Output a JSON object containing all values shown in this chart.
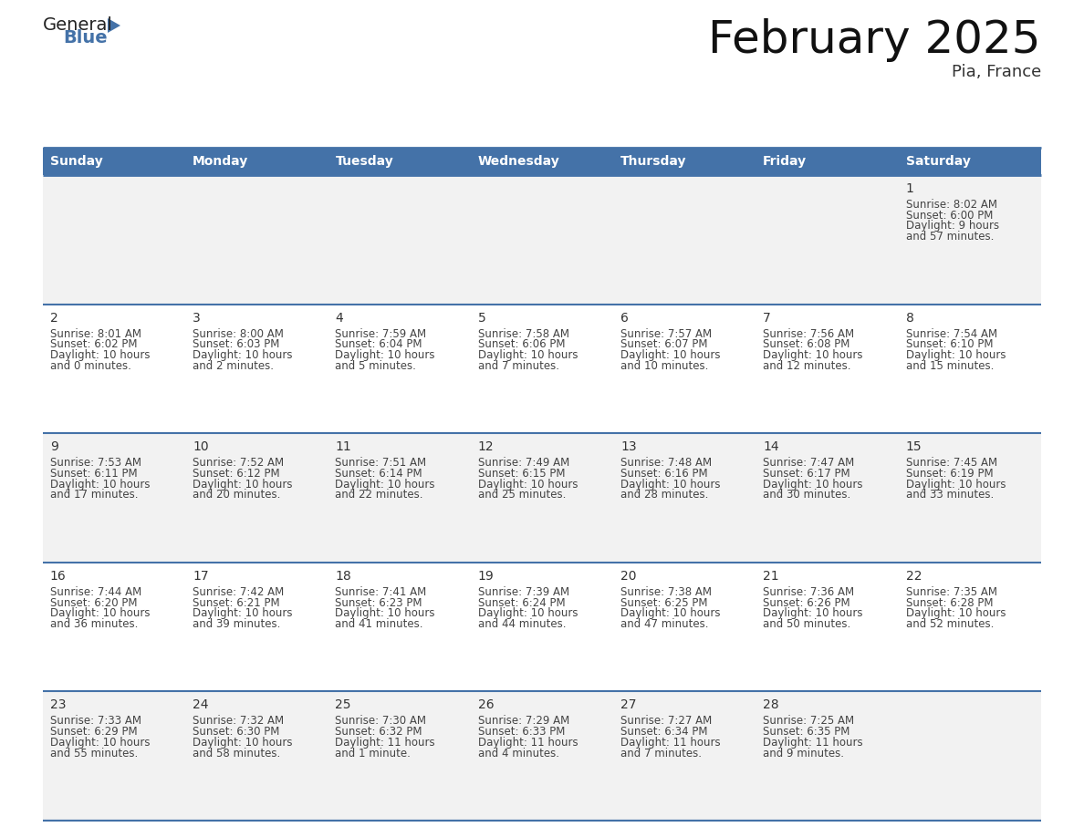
{
  "title": "February 2025",
  "subtitle": "Pia, France",
  "days_of_week": [
    "Sunday",
    "Monday",
    "Tuesday",
    "Wednesday",
    "Thursday",
    "Friday",
    "Saturday"
  ],
  "header_bg": "#4472A8",
  "header_text": "#FFFFFF",
  "row_bg_odd": "#F2F2F2",
  "row_bg_even": "#FFFFFF",
  "border_color": "#4472A8",
  "day_num_color": "#333333",
  "text_color": "#444444",
  "calendar_data": [
    [
      {
        "day": "",
        "sunrise": "",
        "sunset": "",
        "daylight_line1": "",
        "daylight_line2": ""
      },
      {
        "day": "",
        "sunrise": "",
        "sunset": "",
        "daylight_line1": "",
        "daylight_line2": ""
      },
      {
        "day": "",
        "sunrise": "",
        "sunset": "",
        "daylight_line1": "",
        "daylight_line2": ""
      },
      {
        "day": "",
        "sunrise": "",
        "sunset": "",
        "daylight_line1": "",
        "daylight_line2": ""
      },
      {
        "day": "",
        "sunrise": "",
        "sunset": "",
        "daylight_line1": "",
        "daylight_line2": ""
      },
      {
        "day": "",
        "sunrise": "",
        "sunset": "",
        "daylight_line1": "",
        "daylight_line2": ""
      },
      {
        "day": "1",
        "sunrise": "Sunrise: 8:02 AM",
        "sunset": "Sunset: 6:00 PM",
        "daylight_line1": "Daylight: 9 hours",
        "daylight_line2": "and 57 minutes."
      }
    ],
    [
      {
        "day": "2",
        "sunrise": "Sunrise: 8:01 AM",
        "sunset": "Sunset: 6:02 PM",
        "daylight_line1": "Daylight: 10 hours",
        "daylight_line2": "and 0 minutes."
      },
      {
        "day": "3",
        "sunrise": "Sunrise: 8:00 AM",
        "sunset": "Sunset: 6:03 PM",
        "daylight_line1": "Daylight: 10 hours",
        "daylight_line2": "and 2 minutes."
      },
      {
        "day": "4",
        "sunrise": "Sunrise: 7:59 AM",
        "sunset": "Sunset: 6:04 PM",
        "daylight_line1": "Daylight: 10 hours",
        "daylight_line2": "and 5 minutes."
      },
      {
        "day": "5",
        "sunrise": "Sunrise: 7:58 AM",
        "sunset": "Sunset: 6:06 PM",
        "daylight_line1": "Daylight: 10 hours",
        "daylight_line2": "and 7 minutes."
      },
      {
        "day": "6",
        "sunrise": "Sunrise: 7:57 AM",
        "sunset": "Sunset: 6:07 PM",
        "daylight_line1": "Daylight: 10 hours",
        "daylight_line2": "and 10 minutes."
      },
      {
        "day": "7",
        "sunrise": "Sunrise: 7:56 AM",
        "sunset": "Sunset: 6:08 PM",
        "daylight_line1": "Daylight: 10 hours",
        "daylight_line2": "and 12 minutes."
      },
      {
        "day": "8",
        "sunrise": "Sunrise: 7:54 AM",
        "sunset": "Sunset: 6:10 PM",
        "daylight_line1": "Daylight: 10 hours",
        "daylight_line2": "and 15 minutes."
      }
    ],
    [
      {
        "day": "9",
        "sunrise": "Sunrise: 7:53 AM",
        "sunset": "Sunset: 6:11 PM",
        "daylight_line1": "Daylight: 10 hours",
        "daylight_line2": "and 17 minutes."
      },
      {
        "day": "10",
        "sunrise": "Sunrise: 7:52 AM",
        "sunset": "Sunset: 6:12 PM",
        "daylight_line1": "Daylight: 10 hours",
        "daylight_line2": "and 20 minutes."
      },
      {
        "day": "11",
        "sunrise": "Sunrise: 7:51 AM",
        "sunset": "Sunset: 6:14 PM",
        "daylight_line1": "Daylight: 10 hours",
        "daylight_line2": "and 22 minutes."
      },
      {
        "day": "12",
        "sunrise": "Sunrise: 7:49 AM",
        "sunset": "Sunset: 6:15 PM",
        "daylight_line1": "Daylight: 10 hours",
        "daylight_line2": "and 25 minutes."
      },
      {
        "day": "13",
        "sunrise": "Sunrise: 7:48 AM",
        "sunset": "Sunset: 6:16 PM",
        "daylight_line1": "Daylight: 10 hours",
        "daylight_line2": "and 28 minutes."
      },
      {
        "day": "14",
        "sunrise": "Sunrise: 7:47 AM",
        "sunset": "Sunset: 6:17 PM",
        "daylight_line1": "Daylight: 10 hours",
        "daylight_line2": "and 30 minutes."
      },
      {
        "day": "15",
        "sunrise": "Sunrise: 7:45 AM",
        "sunset": "Sunset: 6:19 PM",
        "daylight_line1": "Daylight: 10 hours",
        "daylight_line2": "and 33 minutes."
      }
    ],
    [
      {
        "day": "16",
        "sunrise": "Sunrise: 7:44 AM",
        "sunset": "Sunset: 6:20 PM",
        "daylight_line1": "Daylight: 10 hours",
        "daylight_line2": "and 36 minutes."
      },
      {
        "day": "17",
        "sunrise": "Sunrise: 7:42 AM",
        "sunset": "Sunset: 6:21 PM",
        "daylight_line1": "Daylight: 10 hours",
        "daylight_line2": "and 39 minutes."
      },
      {
        "day": "18",
        "sunrise": "Sunrise: 7:41 AM",
        "sunset": "Sunset: 6:23 PM",
        "daylight_line1": "Daylight: 10 hours",
        "daylight_line2": "and 41 minutes."
      },
      {
        "day": "19",
        "sunrise": "Sunrise: 7:39 AM",
        "sunset": "Sunset: 6:24 PM",
        "daylight_line1": "Daylight: 10 hours",
        "daylight_line2": "and 44 minutes."
      },
      {
        "day": "20",
        "sunrise": "Sunrise: 7:38 AM",
        "sunset": "Sunset: 6:25 PM",
        "daylight_line1": "Daylight: 10 hours",
        "daylight_line2": "and 47 minutes."
      },
      {
        "day": "21",
        "sunrise": "Sunrise: 7:36 AM",
        "sunset": "Sunset: 6:26 PM",
        "daylight_line1": "Daylight: 10 hours",
        "daylight_line2": "and 50 minutes."
      },
      {
        "day": "22",
        "sunrise": "Sunrise: 7:35 AM",
        "sunset": "Sunset: 6:28 PM",
        "daylight_line1": "Daylight: 10 hours",
        "daylight_line2": "and 52 minutes."
      }
    ],
    [
      {
        "day": "23",
        "sunrise": "Sunrise: 7:33 AM",
        "sunset": "Sunset: 6:29 PM",
        "daylight_line1": "Daylight: 10 hours",
        "daylight_line2": "and 55 minutes."
      },
      {
        "day": "24",
        "sunrise": "Sunrise: 7:32 AM",
        "sunset": "Sunset: 6:30 PM",
        "daylight_line1": "Daylight: 10 hours",
        "daylight_line2": "and 58 minutes."
      },
      {
        "day": "25",
        "sunrise": "Sunrise: 7:30 AM",
        "sunset": "Sunset: 6:32 PM",
        "daylight_line1": "Daylight: 11 hours",
        "daylight_line2": "and 1 minute."
      },
      {
        "day": "26",
        "sunrise": "Sunrise: 7:29 AM",
        "sunset": "Sunset: 6:33 PM",
        "daylight_line1": "Daylight: 11 hours",
        "daylight_line2": "and 4 minutes."
      },
      {
        "day": "27",
        "sunrise": "Sunrise: 7:27 AM",
        "sunset": "Sunset: 6:34 PM",
        "daylight_line1": "Daylight: 11 hours",
        "daylight_line2": "and 7 minutes."
      },
      {
        "day": "28",
        "sunrise": "Sunrise: 7:25 AM",
        "sunset": "Sunset: 6:35 PM",
        "daylight_line1": "Daylight: 11 hours",
        "daylight_line2": "and 9 minutes."
      },
      {
        "day": "",
        "sunrise": "",
        "sunset": "",
        "daylight_line1": "",
        "daylight_line2": ""
      }
    ]
  ],
  "logo_text_general": "General",
  "logo_text_blue": "Blue",
  "logo_color_general": "#222222",
  "logo_color_blue": "#4472A8",
  "logo_triangle_color": "#4472A8",
  "title_fontsize": 36,
  "subtitle_fontsize": 13,
  "header_fontsize": 10,
  "day_num_fontsize": 10,
  "cell_text_fontsize": 8.5
}
